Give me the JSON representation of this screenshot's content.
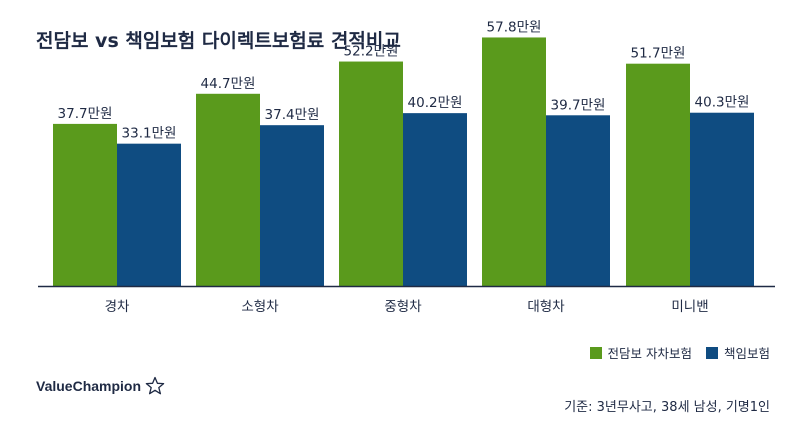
{
  "chart_data": {
    "type": "bar",
    "title": "전담보 vs 책임보험 다이렉트보험료 견적비교",
    "categories": [
      "경차",
      "소형차",
      "중형차",
      "대형차",
      "미니밴"
    ],
    "series": [
      {
        "name": "전담보 자차보험",
        "color": "#5a9a1c",
        "values": [
          37.7,
          44.7,
          52.2,
          57.8,
          51.7
        ],
        "labels": [
          "37.7만원",
          "44.7만원",
          "52.2만원",
          "57.8만원",
          "51.7만원"
        ]
      },
      {
        "name": "책임보험",
        "color": "#0f4c81",
        "values": [
          33.1,
          37.4,
          40.2,
          39.7,
          40.3
        ],
        "labels": [
          "33.1만원",
          "37.4만원",
          "40.2만원",
          "39.7만원",
          "40.3만원"
        ]
      }
    ],
    "ylim": [
      0,
      60
    ],
    "grid": false,
    "legend_position": "bottom-right"
  },
  "brand": {
    "name": "ValueChampion",
    "icon": "star-outline-icon"
  },
  "note": "기준: 3년무사고, 38세 남성, 기명1인"
}
